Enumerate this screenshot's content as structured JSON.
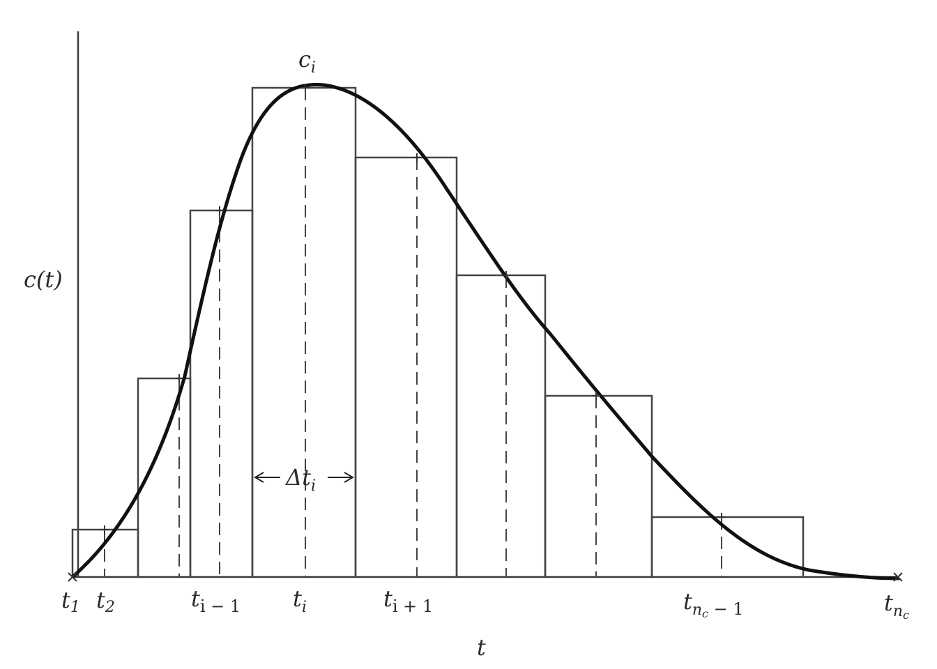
{
  "diagram": {
    "y_axis_label": "c(t)",
    "x_axis_label": "t",
    "peak_label": {
      "base": "c",
      "sub": "i"
    },
    "interval_label": {
      "base": "Δt",
      "sub": "i"
    },
    "tick_labels": [
      {
        "id": "t1",
        "base": "t",
        "sub": "1"
      },
      {
        "id": "t2",
        "base": "t",
        "sub": "2"
      },
      {
        "id": "ti-1",
        "base": "t",
        "sub": "i − 1"
      },
      {
        "id": "ti",
        "base": "t",
        "sub": "i"
      },
      {
        "id": "ti+1",
        "base": "t",
        "sub": "i + 1"
      },
      {
        "id": "tnc-1",
        "base": "t",
        "sub": "n",
        "subsub": "c",
        "tail": " − 1"
      },
      {
        "id": "tnc",
        "base": "t",
        "sub": "n",
        "subsub": "c"
      }
    ]
  }
}
